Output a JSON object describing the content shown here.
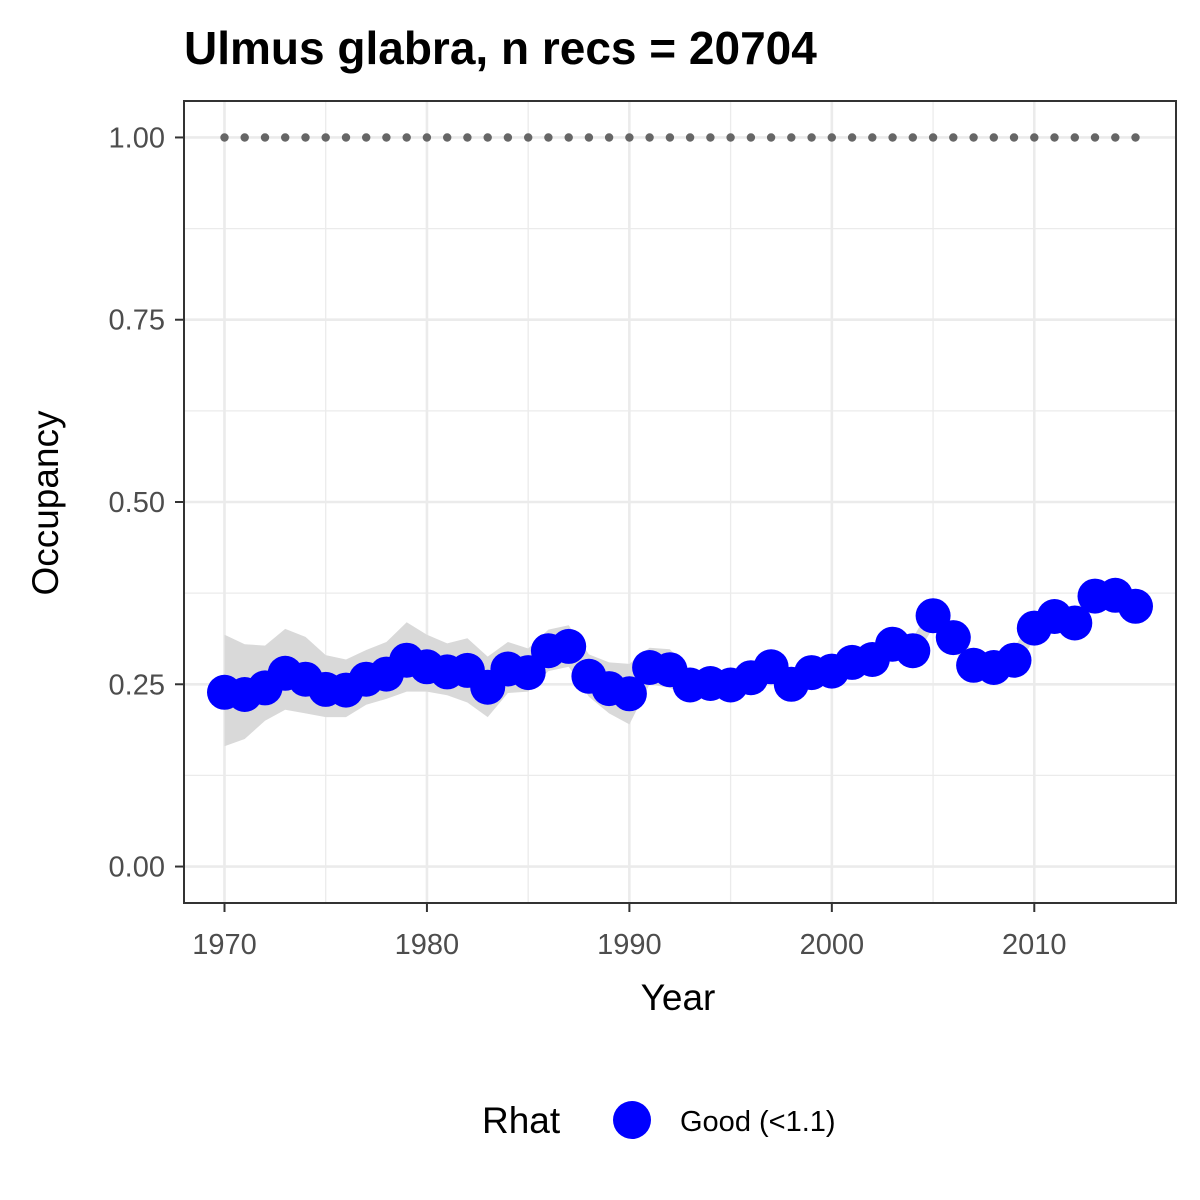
{
  "chart_data": {
    "type": "line",
    "title": "Ulmus glabra, n recs = 20704",
    "xlabel": "Year",
    "ylabel": "Occupancy",
    "xlim": [
      1968,
      2017
    ],
    "ylim": [
      -0.05,
      1.05
    ],
    "x_ticks": [
      1970,
      1980,
      1990,
      2000,
      2010
    ],
    "x_tick_labels": [
      "1970",
      "1980",
      "1990",
      "2000",
      "2010"
    ],
    "y_ticks": [
      0,
      0.25,
      0.5,
      0.75,
      1.0
    ],
    "y_tick_labels": [
      "0.00",
      "0.25",
      "0.50",
      "0.75",
      "1.00"
    ],
    "grid": true,
    "legend": {
      "title": "Rhat",
      "position": "bottom",
      "entries": [
        {
          "label": "Good (<1.1)",
          "color": "#0000ff"
        }
      ]
    },
    "colors": {
      "points": "#0000ff",
      "ribbon": "#d9d9d9",
      "reference_dots": "#666666",
      "grid": "#ebebeb",
      "panel_border": "#333333"
    },
    "x": [
      1970,
      1971,
      1972,
      1973,
      1974,
      1975,
      1976,
      1977,
      1978,
      1979,
      1980,
      1981,
      1982,
      1983,
      1984,
      1985,
      1986,
      1987,
      1988,
      1989,
      1990,
      1991,
      1992,
      1993,
      1994,
      1995,
      1996,
      1997,
      1998,
      1999,
      2000,
      2001,
      2002,
      2003,
      2004,
      2005,
      2006,
      2007,
      2008,
      2009,
      2010,
      2011,
      2012,
      2013,
      2014,
      2015
    ],
    "series": [
      {
        "name": "Good (<1.1)",
        "values": [
          0.239,
          0.236,
          0.245,
          0.265,
          0.257,
          0.243,
          0.242,
          0.257,
          0.264,
          0.283,
          0.274,
          0.267,
          0.269,
          0.246,
          0.271,
          0.266,
          0.296,
          0.302,
          0.261,
          0.244,
          0.237,
          0.273,
          0.27,
          0.249,
          0.251,
          0.249,
          0.259,
          0.274,
          0.25,
          0.266,
          0.268,
          0.28,
          0.284,
          0.305,
          0.296,
          0.344,
          0.314,
          0.276,
          0.273,
          0.283,
          0.327,
          0.343,
          0.334,
          0.371,
          0.372,
          0.357
        ],
        "lower": [
          0.165,
          0.175,
          0.2,
          0.215,
          0.21,
          0.205,
          0.205,
          0.222,
          0.23,
          0.24,
          0.24,
          0.235,
          0.225,
          0.205,
          0.238,
          0.24,
          0.268,
          0.274,
          0.233,
          0.21,
          0.195,
          0.25,
          0.245,
          0.232,
          0.233,
          0.233,
          0.24,
          0.255,
          0.235,
          0.25,
          0.252,
          0.264,
          0.268,
          0.289,
          0.28,
          0.328,
          0.298,
          0.262,
          0.258,
          0.268,
          0.312,
          0.328,
          0.319,
          0.356,
          0.357,
          0.342
        ],
        "upper": [
          0.318,
          0.305,
          0.303,
          0.326,
          0.315,
          0.29,
          0.284,
          0.297,
          0.308,
          0.335,
          0.318,
          0.306,
          0.313,
          0.288,
          0.308,
          0.299,
          0.325,
          0.331,
          0.291,
          0.28,
          0.278,
          0.3,
          0.298,
          0.269,
          0.271,
          0.267,
          0.28,
          0.294,
          0.267,
          0.283,
          0.286,
          0.298,
          0.301,
          0.322,
          0.313,
          0.362,
          0.331,
          0.292,
          0.29,
          0.3,
          0.343,
          0.36,
          0.35,
          0.387,
          0.388,
          0.373
        ]
      }
    ],
    "reference_line": {
      "y": 1.0,
      "x_start": 1970,
      "x_end": 2015
    }
  }
}
